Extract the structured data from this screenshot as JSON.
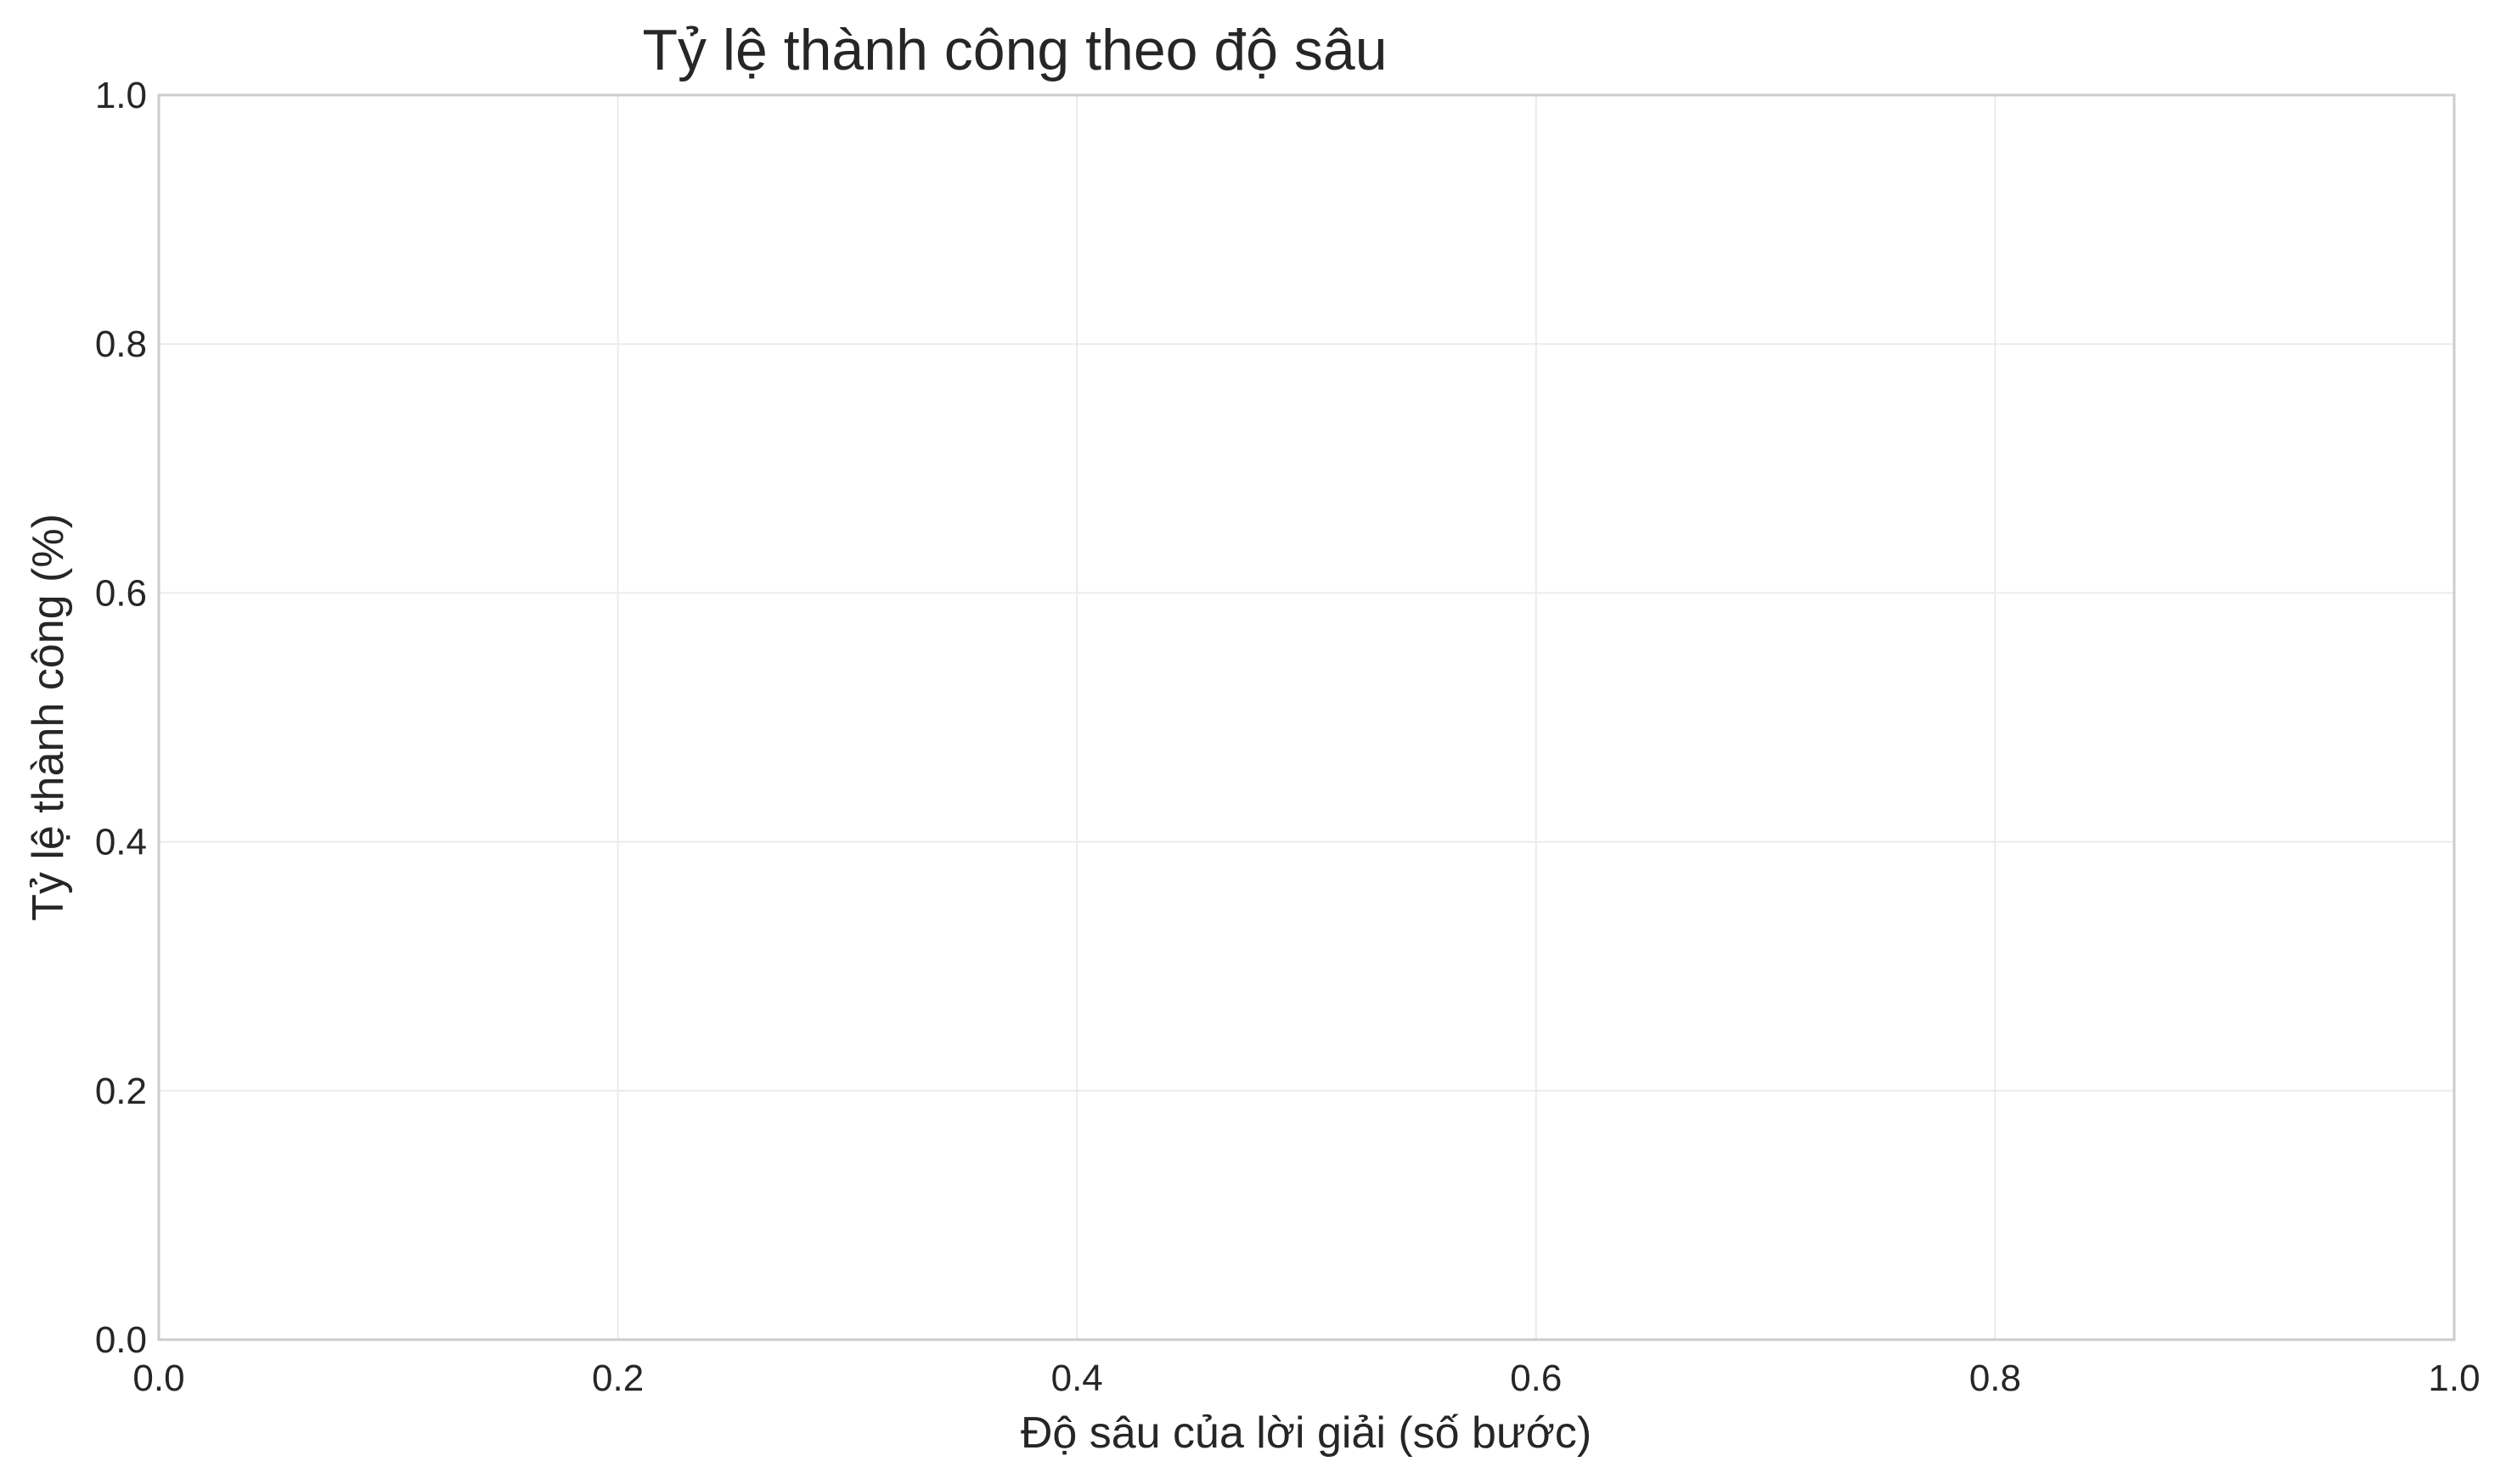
{
  "chart_data": {
    "type": "line",
    "title": "Tỷ lệ thành công theo độ sâu",
    "xlabel": "Độ sâu của lời giải (số bước)",
    "ylabel": "Tỷ lệ thành công (%)",
    "xlim": [
      0.0,
      1.0
    ],
    "ylim": [
      0.0,
      1.0
    ],
    "x_ticks": [
      "0.0",
      "0.2",
      "0.4",
      "0.6",
      "0.8",
      "1.0"
    ],
    "y_ticks": [
      "0.0",
      "0.2",
      "0.4",
      "0.6",
      "0.8",
      "1.0"
    ],
    "grid": true,
    "series": []
  },
  "colors": {
    "background": "#ffffff",
    "grid": "#ebebeb",
    "frame": "#cccccc",
    "text": "#262626"
  }
}
